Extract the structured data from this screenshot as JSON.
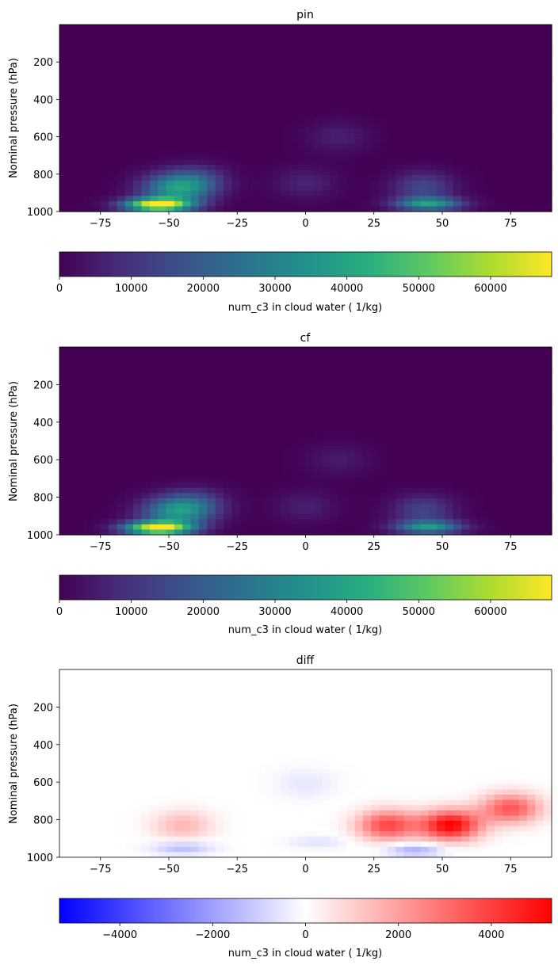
{
  "chart_data": [
    {
      "type": "heatmap",
      "title": "pin",
      "xlabel": "",
      "ylabel": "Nominal pressure (hPa)",
      "xlim": [
        -90,
        90
      ],
      "ylim": [
        1000,
        0
      ],
      "xticks": [
        "−75",
        "−50",
        "−25",
        "0",
        "25",
        "50",
        "75"
      ],
      "xtick_values": [
        -75,
        -50,
        -25,
        0,
        25,
        50,
        75
      ],
      "yticks": [
        "200",
        "400",
        "600",
        "800",
        "1000"
      ],
      "ytick_values": [
        200,
        400,
        600,
        800,
        1000
      ],
      "colormap": "viridis",
      "colorbar": {
        "label": "num_c3 in cloud water ( 1/kg)",
        "range": [
          0,
          68500
        ],
        "ticks": [
          "0",
          "10000",
          "20000",
          "30000",
          "40000",
          "50000",
          "60000"
        ],
        "tick_values": [
          0,
          10000,
          20000,
          30000,
          40000,
          50000,
          60000
        ]
      },
      "features": [
        {
          "lat": -54,
          "p": 965,
          "value": 68000
        },
        {
          "lat": -48,
          "p": 880,
          "value": 32000
        },
        {
          "lat": -40,
          "p": 840,
          "value": 16000
        },
        {
          "lat": 45,
          "p": 960,
          "value": 36000
        },
        {
          "lat": 43,
          "p": 870,
          "value": 15000
        },
        {
          "lat": 12,
          "p": 600,
          "value": 6000
        },
        {
          "lat": 0,
          "p": 850,
          "value": 7000
        }
      ]
    },
    {
      "type": "heatmap",
      "title": "cf",
      "xlabel": "",
      "ylabel": "Nominal pressure (hPa)",
      "xlim": [
        -90,
        90
      ],
      "ylim": [
        1000,
        0
      ],
      "xticks": [
        "−75",
        "−50",
        "−25",
        "0",
        "25",
        "50",
        "75"
      ],
      "xtick_values": [
        -75,
        -50,
        -25,
        0,
        25,
        50,
        75
      ],
      "yticks": [
        "200",
        "400",
        "600",
        "800",
        "1000"
      ],
      "ytick_values": [
        200,
        400,
        600,
        800,
        1000
      ],
      "colormap": "viridis",
      "colorbar": {
        "label": "num_c3 in cloud water ( 1/kg)",
        "range": [
          0,
          68500
        ],
        "ticks": [
          "0",
          "10000",
          "20000",
          "30000",
          "40000",
          "50000",
          "60000"
        ],
        "tick_values": [
          0,
          10000,
          20000,
          30000,
          40000,
          50000,
          60000
        ]
      },
      "features": [
        {
          "lat": -54,
          "p": 965,
          "value": 67000
        },
        {
          "lat": -48,
          "p": 880,
          "value": 31000
        },
        {
          "lat": -40,
          "p": 840,
          "value": 15000
        },
        {
          "lat": 45,
          "p": 960,
          "value": 34000
        },
        {
          "lat": 43,
          "p": 870,
          "value": 14000
        },
        {
          "lat": 12,
          "p": 600,
          "value": 5000
        },
        {
          "lat": 0,
          "p": 850,
          "value": 6000
        }
      ]
    },
    {
      "type": "heatmap",
      "title": "diff",
      "xlabel": "",
      "ylabel": "Nominal pressure (hPa)",
      "xlim": [
        -90,
        90
      ],
      "ylim": [
        1000,
        0
      ],
      "xticks": [
        "−75",
        "−50",
        "−25",
        "0",
        "25",
        "50",
        "75"
      ],
      "xtick_values": [
        -75,
        -50,
        -25,
        0,
        25,
        50,
        75
      ],
      "yticks": [
        "200",
        "400",
        "600",
        "800",
        "1000"
      ],
      "ytick_values": [
        200,
        400,
        600,
        800,
        1000
      ],
      "colormap": "bwr",
      "colorbar": {
        "label": "num_c3 in cloud water ( 1/kg)",
        "range": [
          -5300,
          5300
        ],
        "ticks": [
          "−4000",
          "−2000",
          "0",
          "2000",
          "4000"
        ],
        "tick_values": [
          -4000,
          -2000,
          0,
          2000,
          4000
        ]
      },
      "features": [
        {
          "lat": 53,
          "p": 830,
          "value": 5300
        },
        {
          "lat": 30,
          "p": 830,
          "value": 3800
        },
        {
          "lat": 75,
          "p": 740,
          "value": 3500
        },
        {
          "lat": -45,
          "p": 830,
          "value": 1500
        },
        {
          "lat": -45,
          "p": 950,
          "value": -1500
        },
        {
          "lat": 40,
          "p": 960,
          "value": -1800
        },
        {
          "lat": 5,
          "p": 920,
          "value": -600
        },
        {
          "lat": 0,
          "p": 610,
          "value": -500
        }
      ]
    }
  ]
}
